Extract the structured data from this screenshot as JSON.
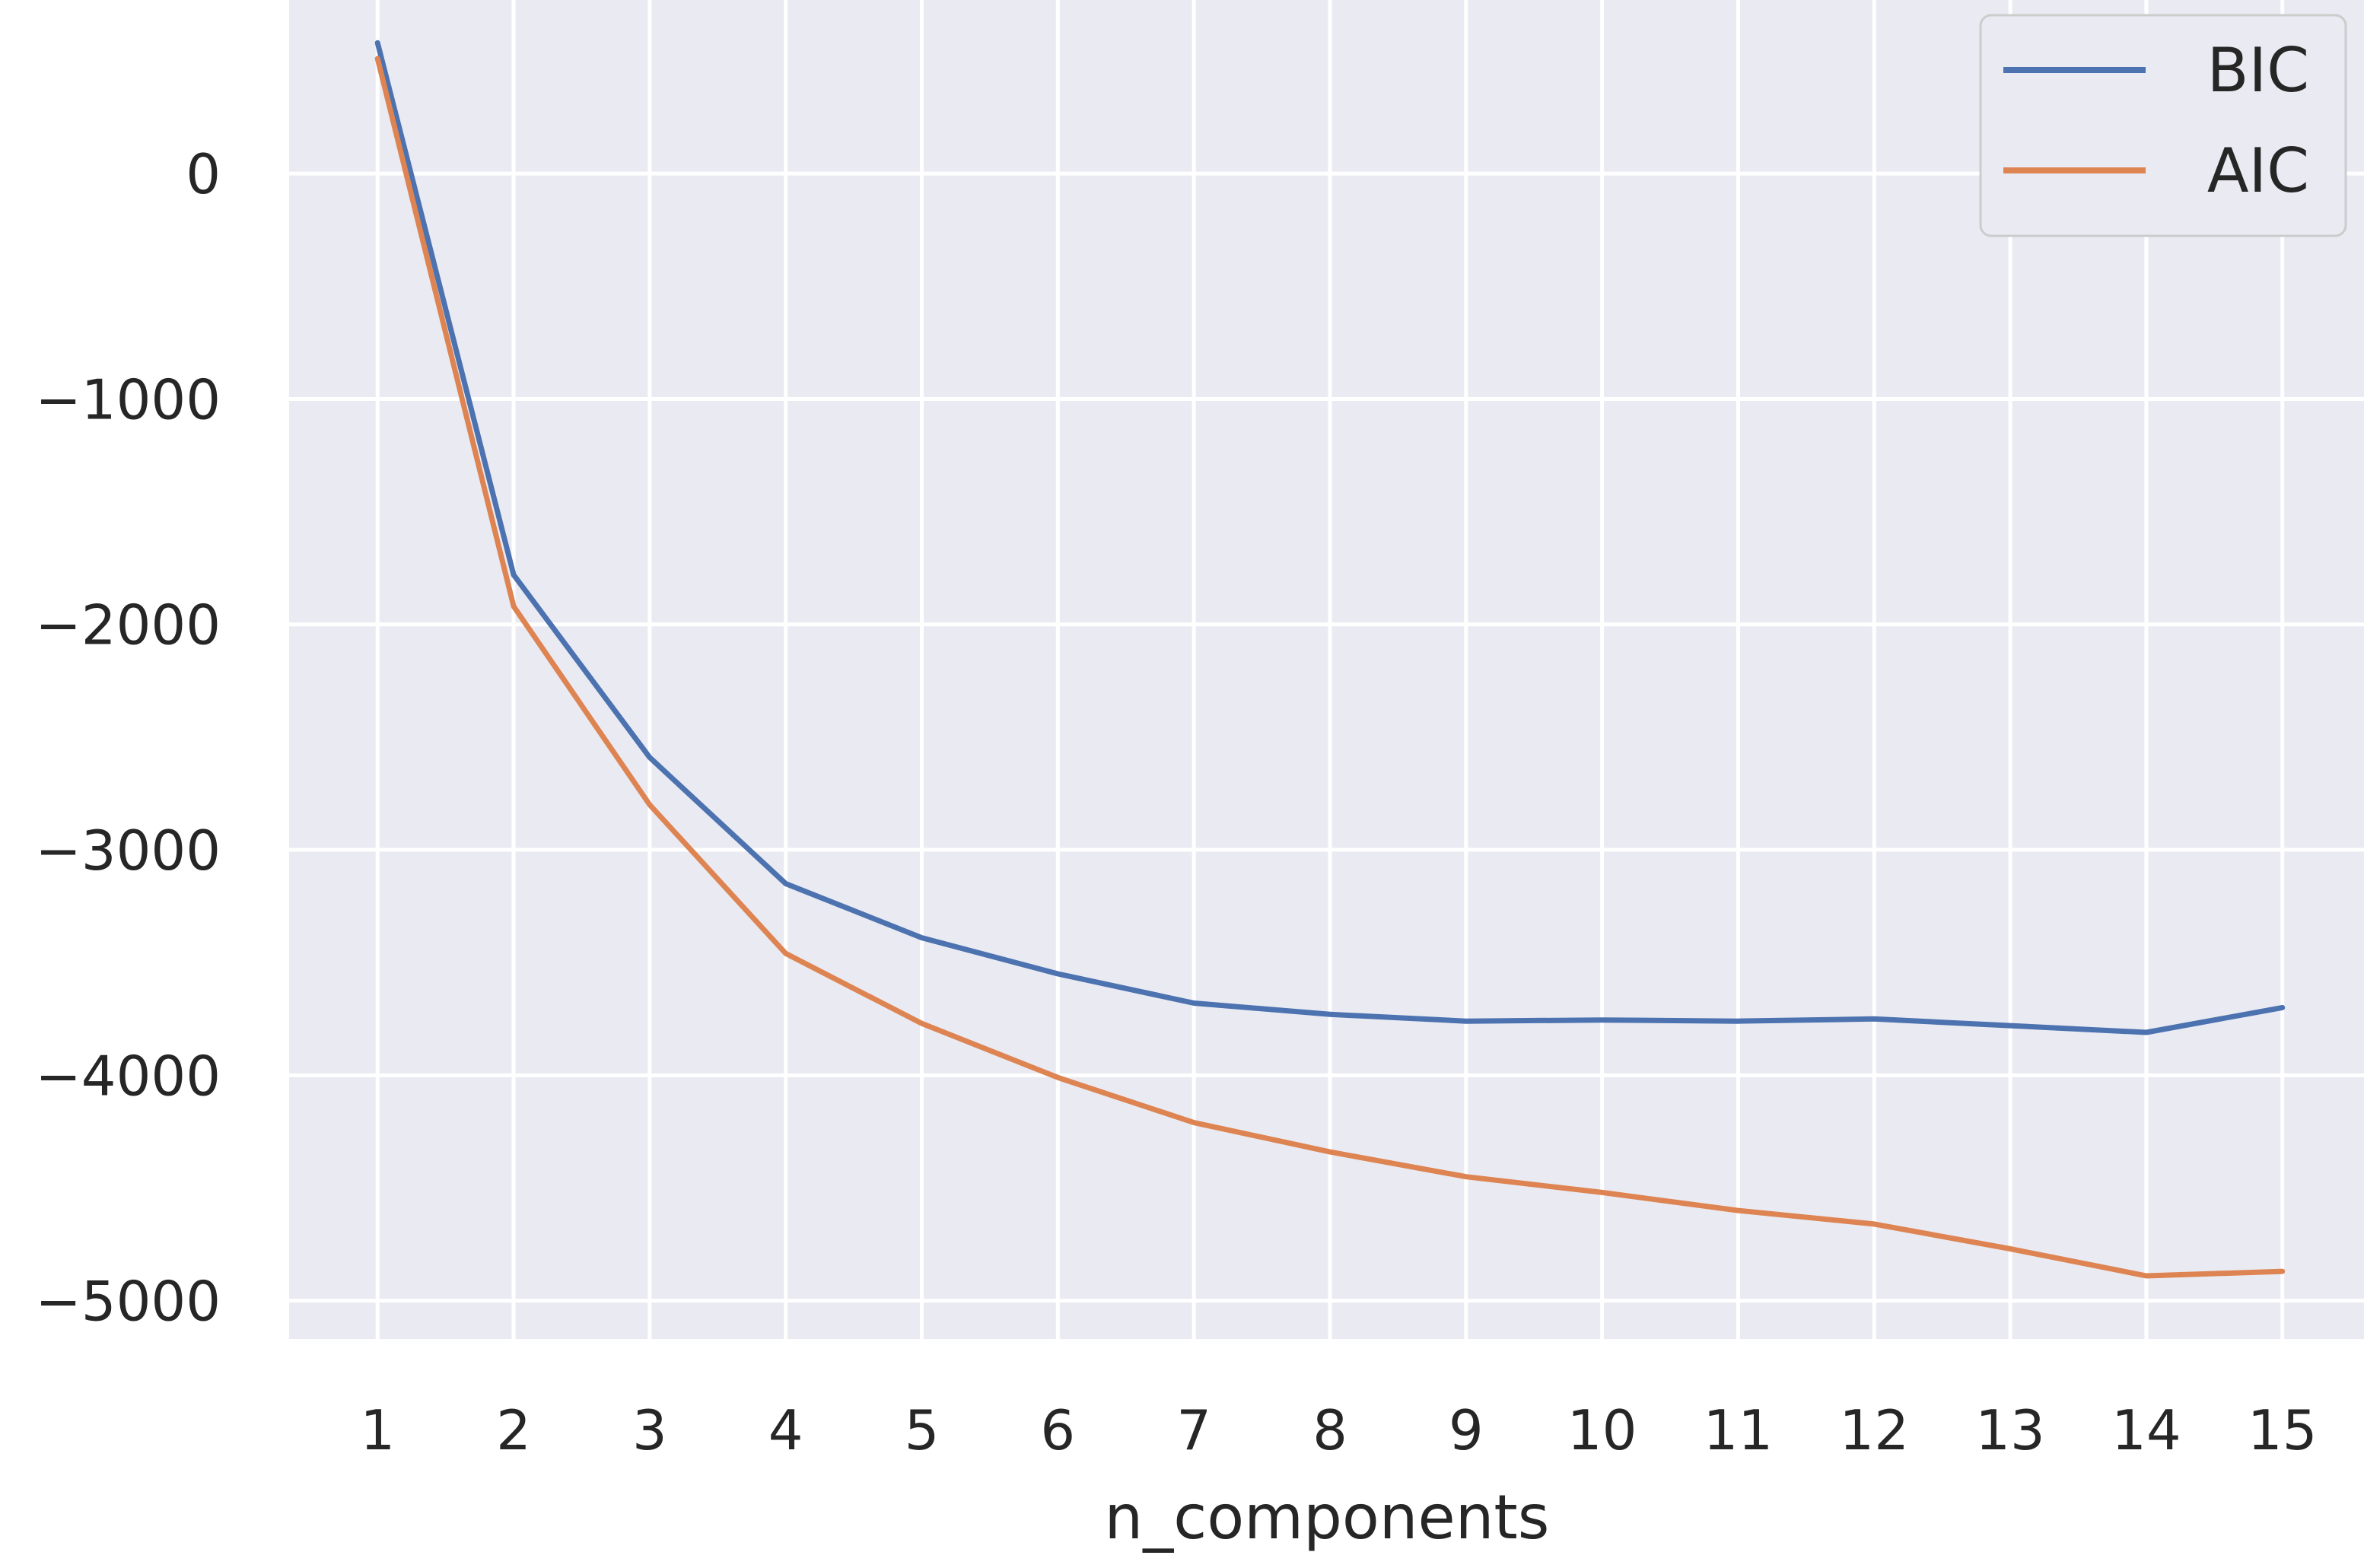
{
  "chart_data": {
    "type": "line",
    "x": [
      1,
      2,
      3,
      4,
      5,
      6,
      7,
      8,
      9,
      10,
      11,
      12,
      13,
      14,
      15
    ],
    "xticks": [
      "1",
      "2",
      "3",
      "4",
      "5",
      "6",
      "7",
      "8",
      "9",
      "10",
      "11",
      "12",
      "13",
      "14",
      "15"
    ],
    "yticks": [
      "0",
      "−1000",
      "−2000",
      "−3000",
      "−4000",
      "−5000"
    ],
    "ytick_values": [
      0,
      -1000,
      -2000,
      -3000,
      -4000,
      -5000
    ],
    "xlabel": "n_components",
    "ylabel": "",
    "xlim": [
      0.35,
      15.6
    ],
    "ylim": [
      -5170,
      770
    ],
    "grid": true,
    "legend_position": "top-right",
    "series": [
      {
        "name": "BIC",
        "color": "#4c72b0",
        "values": [
          580,
          -1780,
          -2590,
          -3150,
          -3390,
          -3550,
          -3680,
          -3730,
          -3760,
          -3755,
          -3760,
          -3750,
          -3780,
          -3810,
          -3700
        ]
      },
      {
        "name": "AIC",
        "color": "#dd8452",
        "values": [
          510,
          -1920,
          -2800,
          -3460,
          -3770,
          -4010,
          -4210,
          -4340,
          -4450,
          -4520,
          -4600,
          -4660,
          -4770,
          -4890,
          -4870
        ]
      }
    ],
    "colors": {
      "plot_background": "#eaeaf2",
      "grid": "#ffffff",
      "legend_background": "#eaeaf2",
      "legend_border": "#cccccc"
    }
  }
}
